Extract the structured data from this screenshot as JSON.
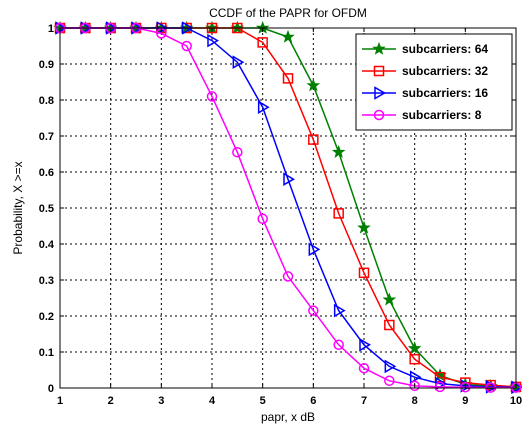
{
  "chart_data": {
    "type": "line",
    "title": "CCDF of the PAPR for OFDM",
    "xlabel": "papr, x dB",
    "ylabel": "Probability, X >=x",
    "xlim": [
      1,
      10
    ],
    "ylim": [
      0,
      1
    ],
    "xticks": [
      "1",
      "2",
      "3",
      "4",
      "5",
      "6",
      "7",
      "8",
      "9",
      "10"
    ],
    "yticks": [
      "0",
      "0.1",
      "0.2",
      "0.3",
      "0.4",
      "0.5",
      "0.6",
      "0.7",
      "0.8",
      "0.9",
      "1"
    ],
    "grid": true,
    "legend_position": "top-right",
    "x": [
      1,
      1.5,
      2,
      2.5,
      3,
      3.5,
      4,
      4.5,
      5,
      5.5,
      6,
      6.5,
      7,
      7.5,
      8,
      8.5,
      9,
      9.5,
      10
    ],
    "series": [
      {
        "name": "subcarriers: 64",
        "color": "#008000",
        "marker": "star",
        "values": [
          1,
          1,
          1,
          1,
          1,
          1,
          1,
          1,
          1,
          0.975,
          0.84,
          0.655,
          0.445,
          0.245,
          0.11,
          0.035,
          0.01,
          0.005,
          0.003
        ]
      },
      {
        "name": "subcarriers: 32",
        "color": "#ff0000",
        "marker": "square",
        "values": [
          1,
          1,
          1,
          1,
          1,
          1,
          1,
          1,
          0.96,
          0.86,
          0.69,
          0.485,
          0.32,
          0.175,
          0.08,
          0.03,
          0.015,
          0.008,
          0.003
        ]
      },
      {
        "name": "subcarriers: 16",
        "color": "#0000ff",
        "marker": "triangle-right",
        "values": [
          1,
          1,
          1,
          1,
          1,
          1,
          0.965,
          0.905,
          0.78,
          0.58,
          0.385,
          0.215,
          0.12,
          0.06,
          0.03,
          0.012,
          0.006,
          0.003,
          0.002
        ]
      },
      {
        "name": "subcarriers: 8",
        "color": "#ff00ff",
        "marker": "circle",
        "values": [
          1,
          1,
          1,
          1,
          0.985,
          0.95,
          0.81,
          0.655,
          0.47,
          0.31,
          0.215,
          0.12,
          0.055,
          0.02,
          0.006,
          0.003,
          0.002,
          0.001,
          0.001
        ]
      }
    ]
  }
}
